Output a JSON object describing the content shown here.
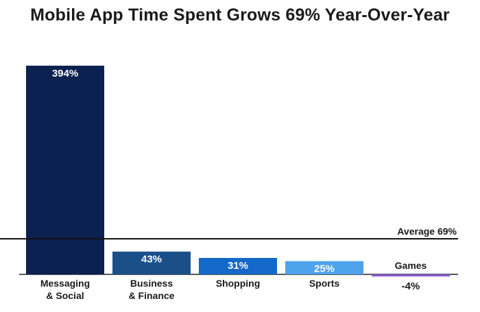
{
  "chart_data": {
    "type": "bar",
    "title": "Mobile App Time Spent Grows 69% Year-Over-Year",
    "xlabel": "",
    "ylabel": "",
    "ylim": [
      -10,
      400
    ],
    "grid": false,
    "categories": [
      [
        "Messaging",
        "& Social"
      ],
      [
        "Business",
        "& Finance"
      ],
      [
        "Shopping"
      ],
      [
        "Sports"
      ],
      [
        "Games"
      ]
    ],
    "values": [
      394,
      43,
      31,
      25,
      -4
    ],
    "value_labels": [
      "394%",
      "43%",
      "31%",
      "25%",
      "-4%"
    ],
    "colors": [
      "#0b2150",
      "#1a4f8a",
      "#1368c9",
      "#4ea3ec",
      "#8a5bd6"
    ],
    "label_colors": [
      "#ffffff",
      "#ffffff",
      "#ffffff",
      "#ffffff",
      "#1a1a1a"
    ],
    "average": {
      "value": 69,
      "label": "Average 69%"
    }
  }
}
